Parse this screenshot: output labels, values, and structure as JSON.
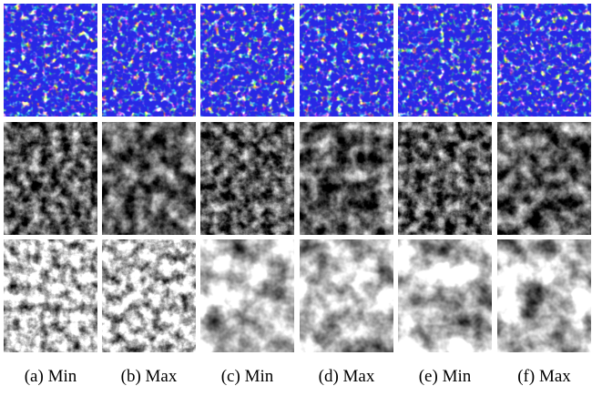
{
  "figure": {
    "captions": [
      "(a) Min",
      "(b) Max",
      "(c) Min",
      "(d) Max",
      "(e) Min",
      "(f) Max"
    ]
  }
}
